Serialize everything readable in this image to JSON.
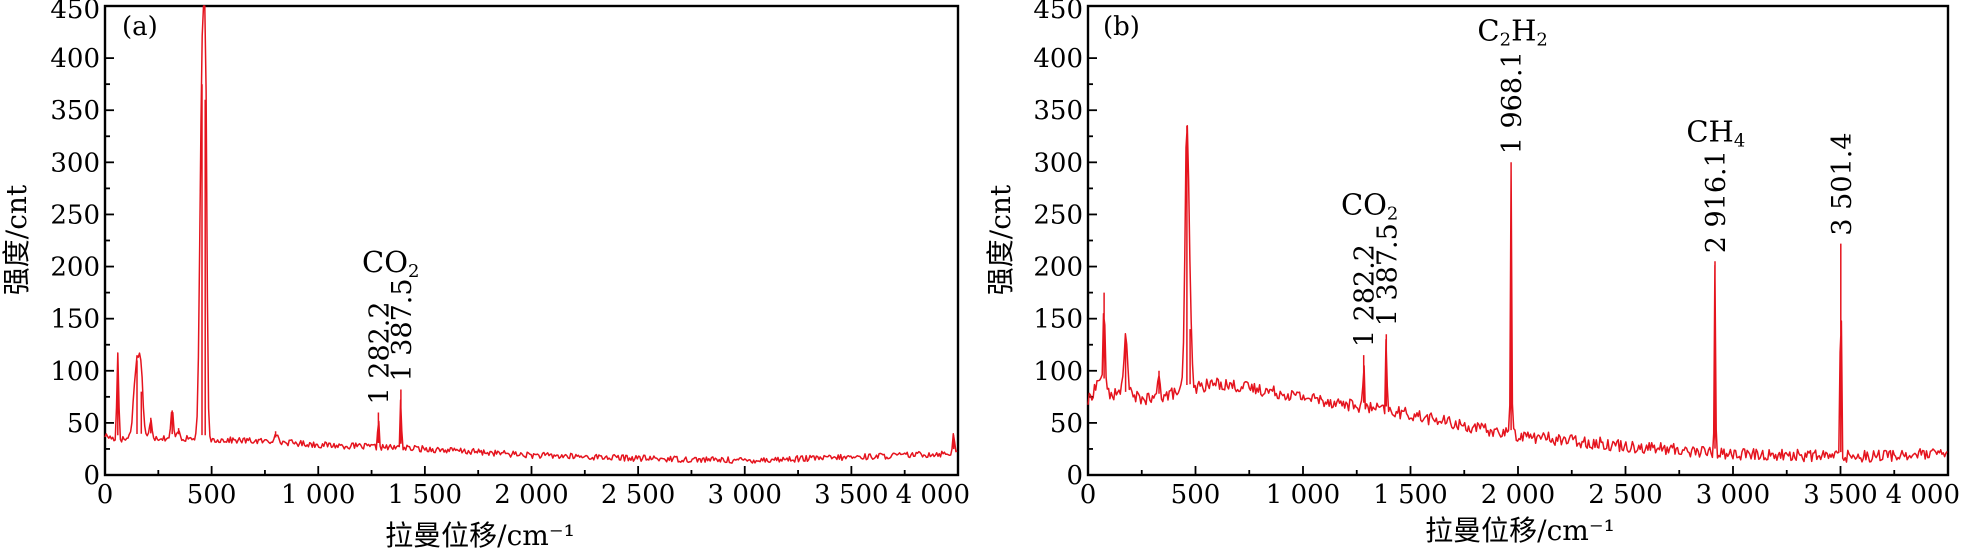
{
  "colors": {
    "trace": "#e5141e",
    "axis": "#000000"
  },
  "chart_data": [
    {
      "type": "line",
      "panel_label": "(a)",
      "xlabel": "拉曼位移/cm⁻¹",
      "ylabel": "强度/cnt",
      "xlim": [
        0,
        4000
      ],
      "ylim": [
        0,
        450
      ],
      "x_ticks": [
        0,
        500,
        1000,
        1500,
        2000,
        2500,
        3000,
        3500,
        4000
      ],
      "x_tick_labels": [
        "0",
        "500",
        "1 000",
        "1 500",
        "2 000",
        "2 500",
        "3 000",
        "3 500",
        "4 000"
      ],
      "y_ticks": [
        0,
        50,
        100,
        150,
        200,
        250,
        300,
        350,
        400,
        450
      ],
      "y_tick_labels": [
        "0",
        "50",
        "100",
        "150",
        "200",
        "250",
        "300",
        "350",
        "400",
        "450"
      ],
      "grid": false,
      "baseline": [
        [
          0,
          38
        ],
        [
          50,
          34
        ],
        [
          200,
          36
        ],
        [
          500,
          34
        ],
        [
          800,
          32
        ],
        [
          1000,
          29
        ],
        [
          1500,
          25
        ],
        [
          2000,
          19
        ],
        [
          2500,
          16
        ],
        [
          3000,
          14
        ],
        [
          3500,
          17
        ],
        [
          4000,
          21
        ]
      ],
      "peaks": [
        {
          "x": 60,
          "y": 117,
          "w": 6
        },
        {
          "x": 150,
          "y": 110,
          "w": 20
        },
        {
          "x": 170,
          "y": 80,
          "w": 12
        },
        {
          "x": 215,
          "y": 55,
          "w": 8
        },
        {
          "x": 315,
          "y": 62,
          "w": 8
        },
        {
          "x": 345,
          "y": 45,
          "w": 8
        },
        {
          "x": 455,
          "y": 375,
          "w": 14
        },
        {
          "x": 470,
          "y": 360,
          "w": 10
        },
        {
          "x": 800,
          "y": 42,
          "w": 10
        },
        {
          "x": 1282.2,
          "y": 60,
          "w": 4
        },
        {
          "x": 1387.5,
          "y": 82,
          "w": 4
        },
        {
          "x": 3980,
          "y": 38,
          "w": 8
        }
      ],
      "noise": 3,
      "annotations": [
        {
          "text": "1 282.2",
          "x": 1282.2,
          "y": 60
        },
        {
          "text": "1 387.5",
          "x": 1387.5,
          "y": 82
        }
      ],
      "molecule_labels": [
        {
          "name": "CO",
          "sub": "2",
          "x": 1340,
          "y": 195
        }
      ]
    },
    {
      "type": "line",
      "panel_label": "(b)",
      "xlabel": "拉曼位移/cm⁻¹",
      "ylabel": "强度/cnt",
      "xlim": [
        0,
        4000
      ],
      "ylim": [
        0,
        450
      ],
      "x_ticks": [
        0,
        500,
        1000,
        1500,
        2000,
        2500,
        3000,
        3500,
        4000
      ],
      "x_tick_labels": [
        "0",
        "500",
        "1 000",
        "1 500",
        "2 000",
        "2 500",
        "3 000",
        "3 500",
        "4 000"
      ],
      "y_ticks": [
        0,
        50,
        100,
        150,
        200,
        250,
        300,
        350,
        400,
        450
      ],
      "y_tick_labels": [
        "0",
        "50",
        "100",
        "150",
        "200",
        "250",
        "300",
        "350",
        "400",
        "450"
      ],
      "grid": false,
      "baseline": [
        [
          0,
          70
        ],
        [
          60,
          95
        ],
        [
          100,
          78
        ],
        [
          200,
          75
        ],
        [
          300,
          72
        ],
        [
          450,
          82
        ],
        [
          600,
          88
        ],
        [
          800,
          82
        ],
        [
          1000,
          75
        ],
        [
          1200,
          68
        ],
        [
          1500,
          58
        ],
        [
          1800,
          45
        ],
        [
          2000,
          38
        ],
        [
          2500,
          28
        ],
        [
          3000,
          20
        ],
        [
          3500,
          18
        ],
        [
          4000,
          20
        ]
      ],
      "peaks": [
        {
          "x": 75,
          "y": 175,
          "w": 5
        },
        {
          "x": 175,
          "y": 130,
          "w": 14
        },
        {
          "x": 330,
          "y": 100,
          "w": 8
        },
        {
          "x": 460,
          "y": 335,
          "w": 12
        },
        {
          "x": 475,
          "y": 140,
          "w": 10
        },
        {
          "x": 1282.2,
          "y": 115,
          "w": 4
        },
        {
          "x": 1387.5,
          "y": 135,
          "w": 4
        },
        {
          "x": 1968.1,
          "y": 300,
          "w": 4
        },
        {
          "x": 2916.1,
          "y": 205,
          "w": 4
        },
        {
          "x": 3501.4,
          "y": 222,
          "w": 4
        }
      ],
      "noise": 6,
      "annotations": [
        {
          "text": "1 282.2",
          "x": 1282.2,
          "y": 115
        },
        {
          "text": "1 387.5",
          "x": 1387.5,
          "y": 135
        },
        {
          "text": "1 968.1",
          "x": 1968.1,
          "y": 300
        },
        {
          "text": "2 916.1",
          "x": 2916.1,
          "y": 205
        },
        {
          "text": "3 501.4",
          "x": 3501.4,
          "y": 222
        }
      ],
      "molecule_labels": [
        {
          "name": "CO",
          "sub": "2",
          "x": 1310,
          "y": 250
        },
        {
          "name": "C",
          "sub": "2",
          "name2": "H",
          "sub2": "2",
          "x": 1975,
          "y": 417
        },
        {
          "name": "CH",
          "sub": "4",
          "x": 2920,
          "y": 320
        }
      ]
    }
  ]
}
